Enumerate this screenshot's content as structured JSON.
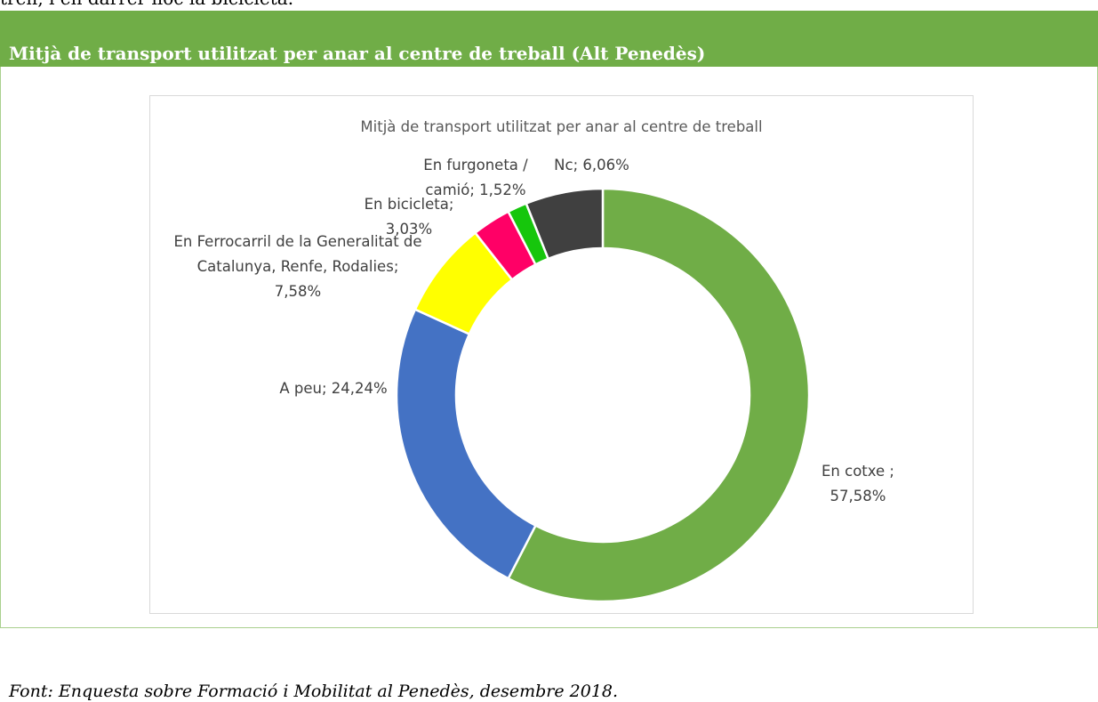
{
  "intro": {
    "text": "tren, i en darrer lloc la bicicleta."
  },
  "header": {
    "title": "Mitjà de transport utilitzat per anar al centre de treball (Alt Penedès)"
  },
  "chart_data": {
    "type": "donut",
    "title": "Mitjà de transport utilitzat per anar al centre de treball",
    "categories": [
      "En cotxe ",
      "A peu",
      "En Ferrocarril de la Generalitat de Catalunya, Renfe, Rodalies",
      "En bicicleta",
      "En furgoneta / camió",
      "Nc"
    ],
    "values": [
      57.58,
      24.24,
      7.58,
      3.03,
      1.52,
      6.06
    ],
    "value_labels": [
      "57,58%",
      "24,24%",
      "7,58%",
      "3,03%",
      "1,52%",
      "6,06%"
    ],
    "label_separator": "; ",
    "colors": [
      "#70ad47",
      "#4472c4",
      "#ffff00",
      "#ff0066",
      "#16c60c",
      "#404040"
    ]
  },
  "footer": {
    "source": "Font: Enquesta sobre Formació i Mobilitat al Penedès, desembre 2018."
  }
}
